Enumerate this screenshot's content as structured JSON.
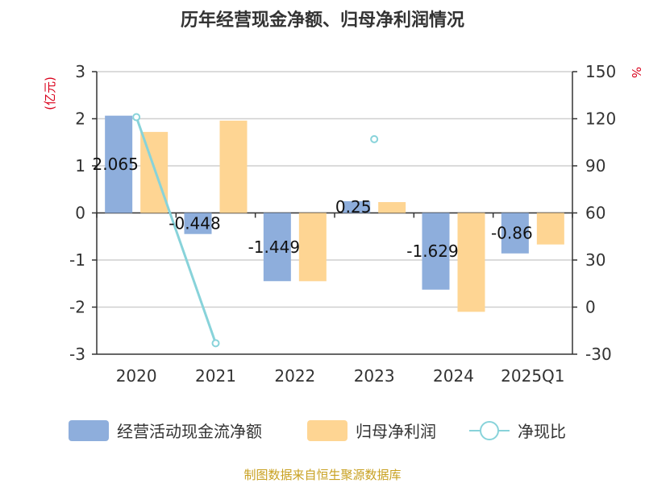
{
  "chart_data": {
    "type": "bar",
    "title": "历年经营现金净额、归母净利润情况",
    "categories": [
      "2020",
      "2021",
      "2022",
      "2023",
      "2024",
      "2025Q1"
    ],
    "y_left": {
      "unit_label": "(亿元)",
      "min": -3,
      "max": 3,
      "ticks": [
        "3",
        "2",
        "1",
        "0",
        "-1",
        "-2",
        "-3"
      ],
      "tick_values": [
        3,
        2,
        1,
        0,
        -1,
        -2,
        -3
      ]
    },
    "y_right": {
      "unit_label": "%",
      "min": -30,
      "max": 150,
      "ticks": [
        "150",
        "120",
        "90",
        "60",
        "30",
        "0",
        "-30"
      ],
      "tick_values": [
        150,
        120,
        90,
        60,
        30,
        0,
        -30
      ]
    },
    "grid": true,
    "series": [
      {
        "name": "经营活动现金流净额",
        "type": "bar",
        "axis": "left",
        "color": "#8eaedc",
        "values": [
          2.065,
          -0.448,
          -1.449,
          0.25,
          -1.629,
          -0.86
        ],
        "labels": [
          "2.065",
          "-0.448",
          "-1.449",
          "0.25",
          "-1.629",
          "-0.86"
        ]
      },
      {
        "name": "归母净利润",
        "type": "bar",
        "axis": "left",
        "color": "#fed593",
        "values": [
          1.72,
          1.96,
          -1.45,
          0.23,
          -2.1,
          -0.67
        ]
      },
      {
        "name": "净现比",
        "type": "line",
        "axis": "right",
        "color": "#88d3da",
        "values": [
          121,
          -23,
          null,
          107,
          null,
          null
        ]
      }
    ],
    "legend_position": "bottom",
    "source": "制图数据来自恒生聚源数据库"
  }
}
